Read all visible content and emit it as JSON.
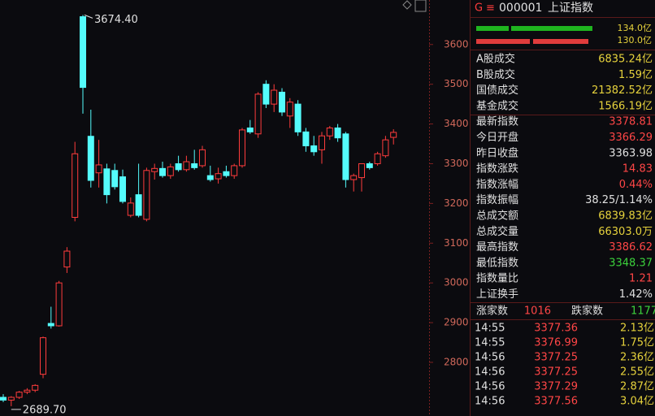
{
  "chart_data": {
    "type": "candlestick",
    "up_color": "#ff3c3c",
    "down_color": "#54fcfc",
    "ylim": [
      2665,
      3712
    ],
    "yticks": [
      2800,
      2900,
      3000,
      3100,
      3200,
      3300,
      3400,
      3500,
      3600
    ],
    "high_label": "3674.40",
    "low_label": "2689.70",
    "open": [
      2712,
      2705,
      2712,
      2725,
      2730,
      2770,
      2898,
      2892,
      3040,
      3165,
      3670,
      3369,
      3277,
      3287,
      3283,
      3267,
      3170,
      3222,
      3160,
      3280,
      3288,
      3270,
      3300,
      3285,
      3300,
      3295,
      3270,
      3262,
      3280,
      3270,
      3295,
      3390,
      3375,
      3500,
      3450,
      3480,
      3420,
      3450,
      3380,
      3345,
      3335,
      3370,
      3390,
      3375,
      3260,
      3265,
      3300,
      3300,
      3320,
      3366.29
    ],
    "high": [
      2720,
      2715,
      2728,
      2735,
      2745,
      2865,
      2940,
      3005,
      3090,
      3355,
      3674.4,
      3436,
      3360,
      3300,
      3300,
      3285,
      3215,
      3300,
      3290,
      3300,
      3305,
      3300,
      3320,
      3320,
      3335,
      3345,
      3295,
      3290,
      3295,
      3300,
      3390,
      3410,
      3480,
      3510,
      3500,
      3490,
      3465,
      3460,
      3390,
      3370,
      3380,
      3395,
      3400,
      3380,
      3275,
      3300,
      3305,
      3330,
      3370,
      3386.62
    ],
    "low": [
      2700,
      2689.7,
      2708,
      2720,
      2725,
      2760,
      2885,
      2890,
      3025,
      3155,
      3426,
      3240,
      3240,
      3200,
      3235,
      3200,
      3165,
      3165,
      3155,
      3260,
      3265,
      3262,
      3280,
      3280,
      3285,
      3290,
      3255,
      3250,
      3265,
      3262,
      3290,
      3375,
      3365,
      3440,
      3430,
      3420,
      3390,
      3370,
      3330,
      3320,
      3300,
      3360,
      3355,
      3240,
      3230,
      3230,
      3285,
      3295,
      3315,
      3348.37
    ],
    "close": [
      2705,
      2712,
      2725,
      2730,
      2742,
      2862,
      2892,
      3000,
      3080,
      3325,
      3492,
      3258,
      3297,
      3222,
      3242,
      3205,
      3201,
      3170,
      3283,
      3288,
      3270,
      3292,
      3285,
      3305,
      3290,
      3335,
      3260,
      3275,
      3270,
      3295,
      3385,
      3380,
      3475,
      3450,
      3485,
      3430,
      3455,
      3380,
      3345,
      3330,
      3370,
      3390,
      3365,
      3260,
      3270,
      3300,
      3290,
      3325,
      3360,
      3378.81
    ]
  },
  "panel": {
    "code": "000001",
    "name": "上证指数",
    "icon": "G",
    "menu": "≡",
    "buy_label": "134.0亿",
    "sell_label": "130.0亿",
    "rows": [
      {
        "label": "A股成交",
        "value": "6835.24亿",
        "color": "#e6d23c"
      },
      {
        "label": "B股成交",
        "value": "1.59亿",
        "color": "#e6d23c"
      },
      {
        "label": "国债成交",
        "value": "21382.52亿",
        "color": "#e6d23c"
      },
      {
        "label": "基金成交",
        "value": "1566.19亿",
        "color": "#e6d23c"
      },
      {
        "label": "最新指数",
        "value": "3378.81",
        "color": "#ff4646"
      },
      {
        "label": "今日开盘",
        "value": "3366.29",
        "color": "#ff4646"
      },
      {
        "label": "昨日收盘",
        "value": "3363.98",
        "color": "#e0e0e0"
      },
      {
        "label": "指数涨跌",
        "value": "14.83",
        "color": "#ff4646"
      },
      {
        "label": "指数涨幅",
        "value": "0.44%",
        "color": "#ff4646"
      },
      {
        "label": "指数振幅",
        "value": "38.25/1.14%",
        "color": "#e0e0e0"
      },
      {
        "label": "总成交额",
        "value": "6839.83亿",
        "color": "#e6d23c"
      },
      {
        "label": "总成交量",
        "value": "66303.0万",
        "color": "#e6d23c"
      },
      {
        "label": "最高指数",
        "value": "3386.62",
        "color": "#ff4646"
      },
      {
        "label": "最低指数",
        "value": "3348.37",
        "color": "#3cd23c"
      },
      {
        "label": "指数量比",
        "value": "1.21",
        "color": "#ff4646"
      },
      {
        "label": "上证换手",
        "value": "1.42%",
        "color": "#e0e0e0"
      }
    ],
    "up_label": "涨家数",
    "up_count": "1016",
    "down_label": "跌家数",
    "down_count": "1177",
    "ticks": [
      [
        "14:55",
        "3377.36",
        "2.13亿"
      ],
      [
        "14:55",
        "3376.99",
        "1.75亿"
      ],
      [
        "14:56",
        "3377.25",
        "2.36亿"
      ],
      [
        "14:56",
        "3377.25",
        "2.55亿"
      ],
      [
        "14:56",
        "3377.29",
        "2.87亿"
      ],
      [
        "14:56",
        "3377.56",
        "3.04亿"
      ]
    ]
  }
}
